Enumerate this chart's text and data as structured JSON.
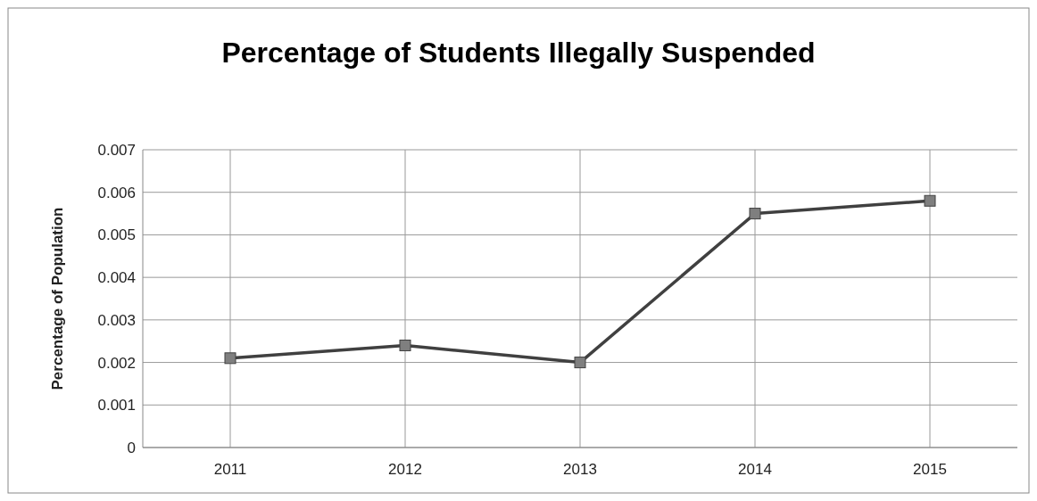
{
  "chart_data": {
    "type": "line",
    "title": "Percentage of Students Illegally Suspended",
    "ylabel": "Percentage of Population",
    "categories": [
      "2011",
      "2012",
      "2013",
      "2014",
      "2015"
    ],
    "series": [
      {
        "color": "#404040",
        "values": [
          0.0021,
          0.0024,
          0.002,
          0.0055,
          0.0058
        ]
      }
    ],
    "ylim": [
      0,
      0.007
    ],
    "yticks": [
      0,
      0.001,
      0.002,
      0.003,
      0.004,
      0.005,
      0.006,
      0.007
    ],
    "grid": true,
    "marker": "square",
    "line_style": "solid"
  }
}
